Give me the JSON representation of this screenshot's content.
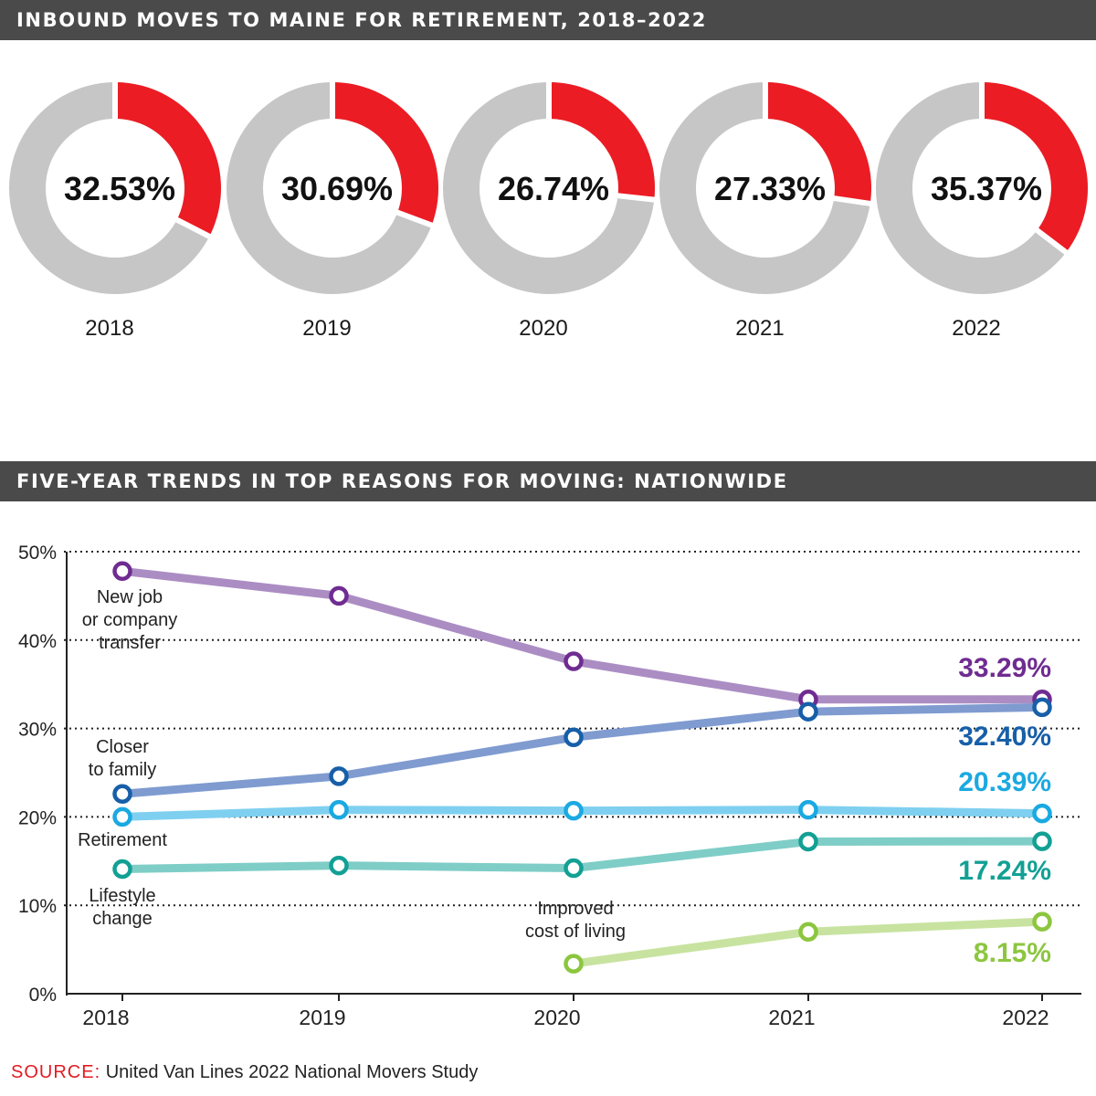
{
  "colors": {
    "banner_bg": "#4a4a4a",
    "donut_highlight": "#ec1c24",
    "donut_rest": "#c6c6c6",
    "source_label": "#e31b23"
  },
  "sections": {
    "donut_title": "INBOUND MOVES TO MAINE FOR RETIREMENT, 2018–2022",
    "line_title": "FIVE-YEAR TRENDS IN TOP REASONS FOR MOVING: NATIONWIDE"
  },
  "source": {
    "label": "SOURCE:",
    "text": "United Van Lines 2022 National Movers Study"
  },
  "chart_data": [
    {
      "type": "pie",
      "subtype": "donut-small-multiples",
      "title": "INBOUND MOVES TO MAINE FOR RETIREMENT, 2018–2022",
      "categories": [
        "2018",
        "2019",
        "2020",
        "2021",
        "2022"
      ],
      "values": [
        32.53,
        30.69,
        26.74,
        27.33,
        35.37
      ],
      "value_labels": [
        "32.53%",
        "30.69%",
        "26.74%",
        "27.33%",
        "35.37%"
      ],
      "unit": "%"
    },
    {
      "type": "line",
      "title": "FIVE-YEAR TRENDS IN TOP REASONS FOR MOVING: NATIONWIDE",
      "x": [
        2018,
        2019,
        2020,
        2021,
        2022
      ],
      "x_tick_labels": [
        "2018",
        "2019",
        "2020",
        "2021",
        "2022"
      ],
      "ylim": [
        0,
        50
      ],
      "y_ticks": [
        0,
        10,
        20,
        30,
        40,
        50
      ],
      "y_tick_labels": [
        "0%",
        "10%",
        "20%",
        "30%",
        "40%",
        "50%"
      ],
      "grid": "horizontal dotted",
      "series": [
        {
          "name": "New job or company transfer",
          "label_lines": [
            "New job",
            "or company",
            "transfer"
          ],
          "values": [
            47.8,
            45.0,
            37.6,
            33.29,
            33.29
          ],
          "end_label": "33.29%",
          "marker_color": "#6f2c91",
          "line_color": "#ab8dc3"
        },
        {
          "name": "Closer to family",
          "label_lines": [
            "Closer",
            "to family"
          ],
          "values": [
            22.6,
            24.6,
            29.0,
            31.9,
            32.4
          ],
          "end_label": "32.40%",
          "marker_color": "#175fa8",
          "line_color": "#7f9bd0"
        },
        {
          "name": "Retirement",
          "label_lines": [
            "Retirement"
          ],
          "values": [
            20.0,
            20.8,
            20.7,
            20.8,
            20.39
          ],
          "end_label": "20.39%",
          "marker_color": "#1ba9e1",
          "line_color": "#7fd0f0"
        },
        {
          "name": "Lifestyle change",
          "label_lines": [
            "Lifestyle",
            "change"
          ],
          "values": [
            14.1,
            14.5,
            14.2,
            17.2,
            17.24
          ],
          "end_label": "17.24%",
          "marker_color": "#13a094",
          "line_color": "#7fcdc7"
        },
        {
          "name": "Improved cost of living",
          "label_lines": [
            "Improved",
            "cost of living"
          ],
          "values": [
            null,
            null,
            3.4,
            7.0,
            8.15
          ],
          "end_label": "8.15%",
          "marker_color": "#8cc63f",
          "line_color": "#c8e3a0"
        }
      ]
    }
  ]
}
